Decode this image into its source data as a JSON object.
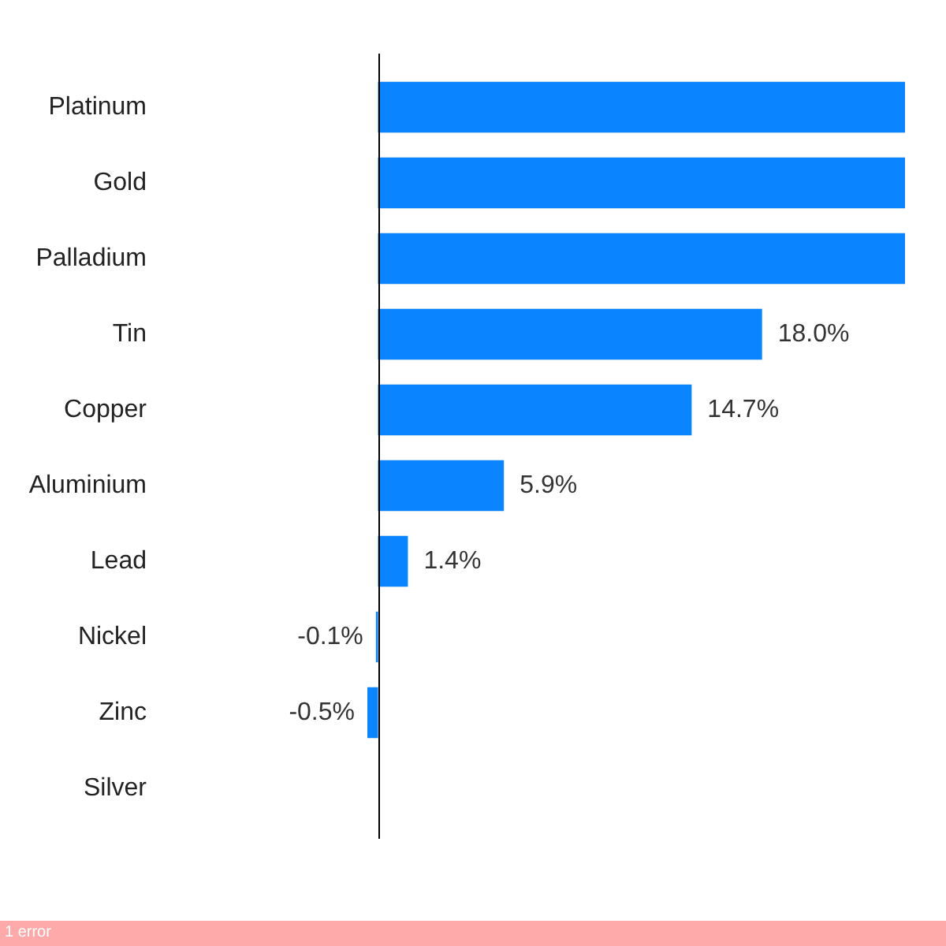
{
  "chart_data": {
    "type": "bar",
    "orientation": "horizontal",
    "categories": [
      "Platinum",
      "Gold",
      "Palladium",
      "Tin",
      "Copper",
      "Aluminium",
      "Lead",
      "Nickel",
      "Zinc",
      "Silver"
    ],
    "values": [
      24.7,
      24.7,
      24.7,
      18.0,
      14.7,
      5.9,
      1.4,
      -0.1,
      -0.5,
      null
    ],
    "value_labels": [
      null,
      null,
      null,
      "18.0%",
      "14.7%",
      "5.9%",
      "1.4%",
      "-0.1%",
      "-0.5%",
      null
    ],
    "color": "#0a84ff",
    "xlim": [
      -0.5,
      24.7
    ],
    "legend": false,
    "annotations": [
      "1 error"
    ]
  }
}
